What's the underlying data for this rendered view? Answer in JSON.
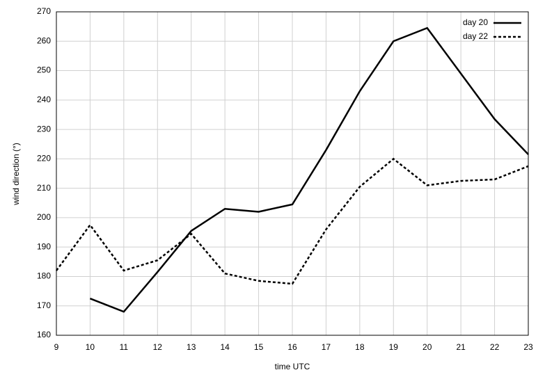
{
  "chart_data": {
    "type": "line",
    "x_label": "time UTC",
    "y_label": "wind direction (°)",
    "x": [
      9,
      10,
      11,
      12,
      13,
      14,
      15,
      16,
      17,
      18,
      19,
      20,
      21,
      22,
      23
    ],
    "series": [
      {
        "name": "day 20",
        "color": "#000000",
        "line_style": "solid",
        "values": [
          null,
          172.5,
          168,
          181.5,
          195.5,
          203,
          202,
          204.5,
          223,
          243,
          260,
          264.5,
          249,
          233.5,
          221.5
        ]
      },
      {
        "name": "day 22",
        "color": "#000000",
        "line_style": "dotted",
        "values": [
          182,
          197.5,
          182,
          185.5,
          194.5,
          181,
          178.5,
          177.5,
          196,
          210.5,
          220,
          211,
          212.5,
          213,
          217.5
        ]
      }
    ],
    "xlim": [
      9,
      23
    ],
    "xticks": [
      9,
      10,
      11,
      12,
      13,
      14,
      15,
      16,
      17,
      18,
      19,
      20,
      21,
      22,
      23
    ],
    "ylim": [
      160,
      270
    ],
    "yticks": [
      160,
      170,
      180,
      190,
      200,
      210,
      220,
      230,
      240,
      250,
      260,
      270
    ],
    "grid": true,
    "legend": "upper right"
  }
}
